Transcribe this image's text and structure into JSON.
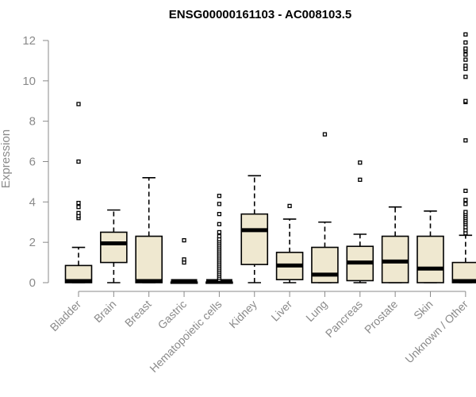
{
  "chart_data": {
    "type": "box",
    "title": "ENSG00000161103 - AC008103.5",
    "ylabel": "Expression",
    "ylim": [
      0,
      12.3
    ],
    "yticks": [
      0,
      2,
      4,
      6,
      8,
      10,
      12
    ],
    "box_fill": "#efe8d0",
    "categories": [
      "Bladder",
      "Brain",
      "Breast",
      "Gastric",
      "Hematopoietic cells",
      "Kidney",
      "Liver",
      "Lung",
      "Pancreas",
      "Prostate",
      "Skin",
      "Unknown / Other"
    ],
    "boxes": [
      {
        "min": 0,
        "q1": 0,
        "median": 0.05,
        "q3": 0.85,
        "max": 1.75,
        "outliers": [
          3.2,
          3.3,
          3.45,
          3.75,
          3.95,
          6.0,
          8.85
        ]
      },
      {
        "min": 0,
        "q1": 1.0,
        "median": 1.95,
        "q3": 2.5,
        "max": 3.6,
        "outliers": []
      },
      {
        "min": 0,
        "q1": 0,
        "median": 0.02,
        "q3": 2.3,
        "max": 5.2,
        "outliers": []
      },
      {
        "min": 0,
        "q1": 0,
        "median": 0,
        "q3": 0.03,
        "max": 0.05,
        "outliers": [
          1.0,
          1.15,
          2.1
        ]
      },
      {
        "min": 0,
        "q1": 0,
        "median": 0,
        "q3": 0.03,
        "max": 0.05,
        "outliers": [
          0.15,
          0.25,
          0.35,
          0.45,
          0.55,
          0.65,
          0.75,
          0.85,
          0.95,
          1.05,
          1.15,
          1.25,
          1.35,
          1.45,
          1.55,
          1.65,
          1.75,
          1.85,
          1.95,
          2.05,
          2.15,
          2.3,
          2.5,
          2.9,
          3.4,
          3.9,
          4.3
        ]
      },
      {
        "min": 0,
        "q1": 0.9,
        "median": 2.6,
        "q3": 3.4,
        "max": 5.3,
        "outliers": []
      },
      {
        "min": 0,
        "q1": 0.15,
        "median": 0.85,
        "q3": 1.5,
        "max": 3.15,
        "outliers": [
          3.8
        ]
      },
      {
        "min": 0,
        "q1": 0,
        "median": 0.4,
        "q3": 1.75,
        "max": 3.0,
        "outliers": [
          7.35
        ]
      },
      {
        "min": 0,
        "q1": 0.1,
        "median": 1.0,
        "q3": 1.8,
        "max": 2.4,
        "outliers": [
          5.1,
          5.95
        ]
      },
      {
        "min": 0,
        "q1": 0,
        "median": 1.05,
        "q3": 2.3,
        "max": 3.75,
        "outliers": []
      },
      {
        "min": 0,
        "q1": 0,
        "median": 0.7,
        "q3": 2.3,
        "max": 3.55,
        "outliers": []
      },
      {
        "min": 0,
        "q1": 0,
        "median": 0.03,
        "q3": 1.0,
        "max": 2.35,
        "outliers": [
          2.45,
          2.6,
          2.75,
          2.9,
          3.0,
          3.1,
          3.2,
          3.3,
          3.4,
          3.5,
          3.9,
          4.1,
          4.55,
          7.05,
          8.95,
          9.0,
          10.2,
          10.6,
          10.75,
          11.05,
          11.3,
          11.5,
          11.6,
          11.9,
          12.3
        ]
      }
    ]
  }
}
